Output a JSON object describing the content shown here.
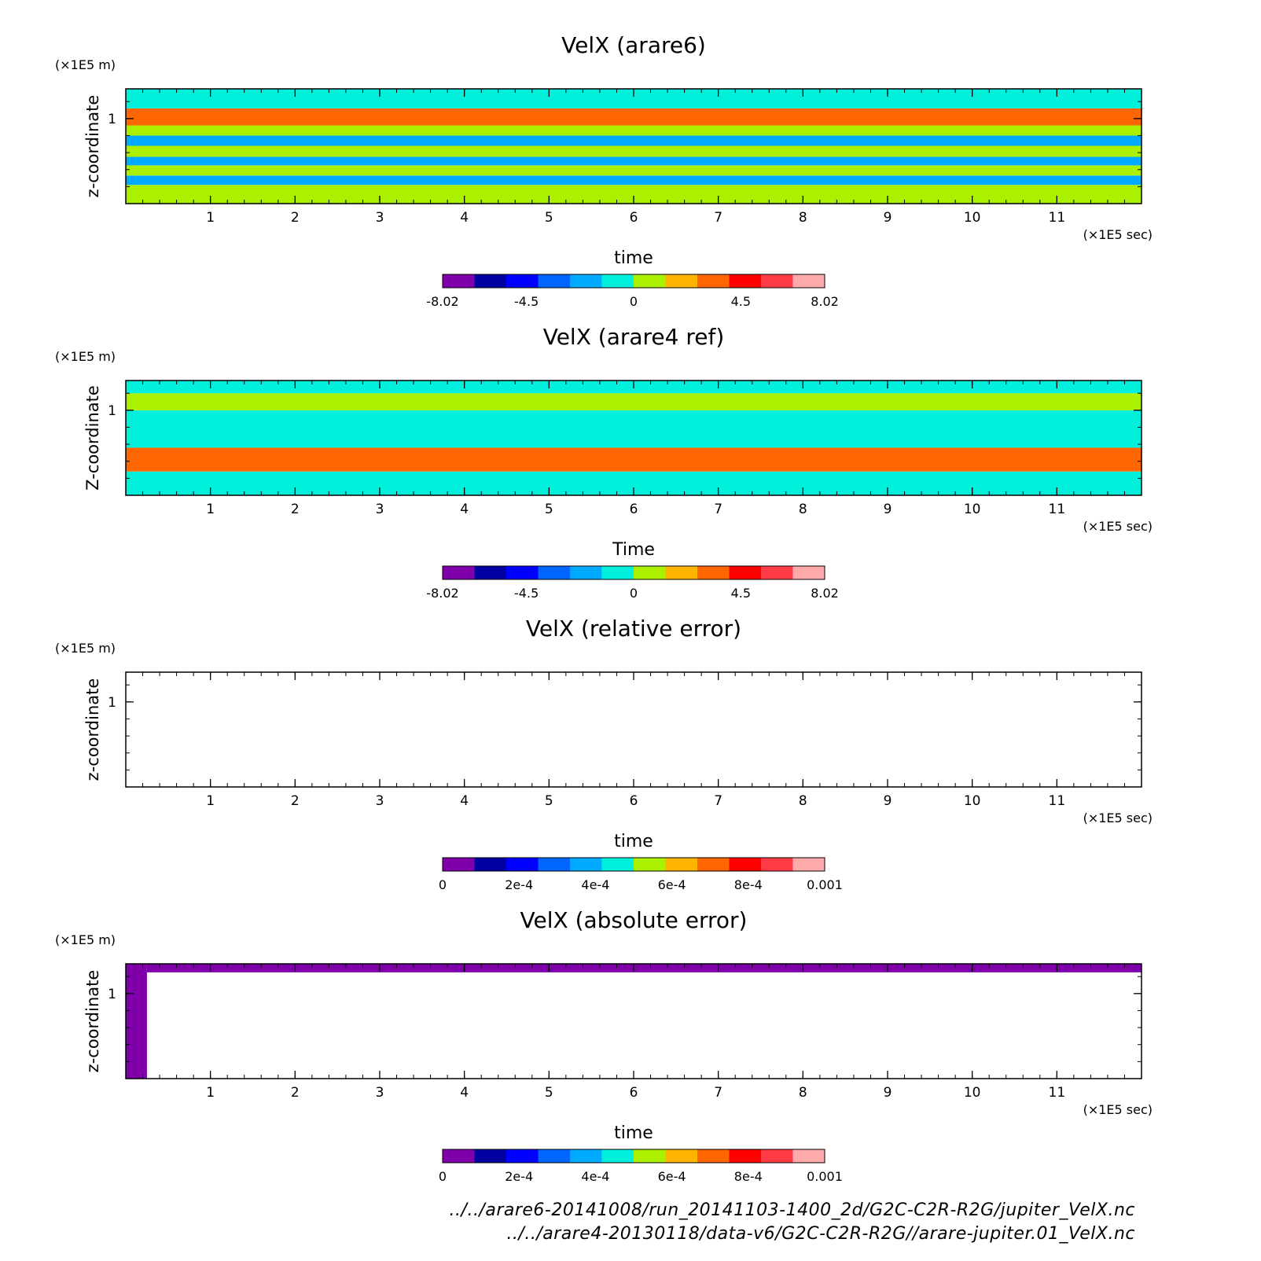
{
  "chart_data": [
    {
      "type": "heatmap",
      "title": "VelX (arare6)",
      "xlabel": "time",
      "ylabel": "z-coordinate",
      "x_unit": "(×1E5 sec)",
      "y_unit": "(×1E5 m)",
      "xlim": [
        0,
        12
      ],
      "ylim": [
        0,
        1.35
      ],
      "x_ticks": [
        1,
        2,
        3,
        4,
        5,
        6,
        7,
        8,
        9,
        10,
        11
      ],
      "y_ticks": [
        1
      ],
      "colorbar": {
        "min": -8.02,
        "max": 8.02,
        "tick_values": [
          -8.02,
          -4.5,
          0,
          4.5,
          8.02
        ],
        "tick_labels": [
          "-8.02",
          "-4.5",
          "0",
          "4.5",
          "8.02"
        ]
      },
      "bands": [
        {
          "z0": 0.0,
          "z1": 0.22,
          "value": 0.8
        },
        {
          "z0": 0.22,
          "z1": 0.33,
          "value": -2.5
        },
        {
          "z0": 0.33,
          "z1": 0.45,
          "value": 0.8
        },
        {
          "z0": 0.45,
          "z1": 0.55,
          "value": -1.4
        },
        {
          "z0": 0.55,
          "z1": 0.68,
          "value": 0.8
        },
        {
          "z0": 0.68,
          "z1": 0.8,
          "value": -2.5
        },
        {
          "z0": 0.8,
          "z1": 0.92,
          "value": 0.8
        },
        {
          "z0": 0.92,
          "z1": 1.12,
          "value": 3.6
        },
        {
          "z0": 1.12,
          "z1": 1.35,
          "value": -0.4
        }
      ]
    },
    {
      "type": "heatmap",
      "title": "VelX (arare4 ref)",
      "xlabel": "Time",
      "ylabel": "Z-coordinate",
      "x_unit": "(×1E5 sec)",
      "y_unit": "(×1E5 m)",
      "xlim": [
        0,
        12
      ],
      "ylim": [
        0,
        1.35
      ],
      "x_ticks": [
        1,
        2,
        3,
        4,
        5,
        6,
        7,
        8,
        9,
        10,
        11
      ],
      "y_ticks": [
        1
      ],
      "colorbar": {
        "min": -8.02,
        "max": 8.02,
        "tick_values": [
          -8.02,
          -4.5,
          0,
          4.5,
          8.02
        ],
        "tick_labels": [
          "-8.02",
          "-4.5",
          "0",
          "4.5",
          "8.02"
        ]
      },
      "bands": [
        {
          "z0": 0.0,
          "z1": 0.28,
          "value": -0.4
        },
        {
          "z0": 0.28,
          "z1": 0.56,
          "value": 3.6
        },
        {
          "z0": 0.56,
          "z1": 1.0,
          "value": -0.4
        },
        {
          "z0": 1.0,
          "z1": 1.2,
          "value": 0.8
        },
        {
          "z0": 1.2,
          "z1": 1.35,
          "value": -0.4
        }
      ]
    },
    {
      "type": "heatmap",
      "title": "VelX (relative error)",
      "xlabel": "time",
      "ylabel": "z-coordinate",
      "x_unit": "(×1E5 sec)",
      "y_unit": "(×1E5 m)",
      "xlim": [
        0,
        12
      ],
      "ylim": [
        0,
        1.35
      ],
      "x_ticks": [
        1,
        2,
        3,
        4,
        5,
        6,
        7,
        8,
        9,
        10,
        11
      ],
      "y_ticks": [
        1
      ],
      "colorbar": {
        "min": 0,
        "max": 0.001,
        "tick_values": [
          0,
          0.0002,
          0.0004,
          0.0006,
          0.0008,
          0.001
        ],
        "tick_labels": [
          "0",
          "2e-4",
          "4e-4",
          "6e-4",
          "8e-4",
          "0.001"
        ]
      },
      "bands": []
    },
    {
      "type": "heatmap",
      "title": "VelX (absolute error)",
      "xlabel": "time",
      "ylabel": "z-coordinate",
      "x_unit": "(×1E5 sec)",
      "y_unit": "(×1E5 m)",
      "xlim": [
        0,
        12
      ],
      "ylim": [
        0,
        1.35
      ],
      "x_ticks": [
        1,
        2,
        3,
        4,
        5,
        6,
        7,
        8,
        9,
        10,
        11
      ],
      "y_ticks": [
        1
      ],
      "colorbar": {
        "min": 0,
        "max": 0.001,
        "tick_values": [
          0,
          0.0002,
          0.0004,
          0.0006,
          0.0008,
          0.001
        ],
        "tick_labels": [
          "0",
          "2e-4",
          "4e-4",
          "6e-4",
          "8e-4",
          "0.001"
        ]
      },
      "filled_regions": [
        {
          "x0": 0.0,
          "x1": 0.25,
          "z0": 0.0,
          "z1": 1.35,
          "value": 1e-05
        },
        {
          "x0": 0.25,
          "x1": 12,
          "z0": 1.25,
          "z1": 1.35,
          "value": 1e-05
        }
      ]
    }
  ],
  "colormap": [
    "#7f00aa",
    "#0000a0",
    "#0000ff",
    "#0066ff",
    "#00aaff",
    "#00f0dc",
    "#aaf000",
    "#ffb400",
    "#ff6600",
    "#ff0000",
    "#ff3c46",
    "#ffaaaa"
  ],
  "footnotes": [
    "../../arare6-20141008/run_20141103-1400_2d/G2C-C2R-R2G/jupiter_VelX.nc",
    "../../arare4-20130118/data-v6/G2C-C2R-R2G//arare-jupiter.01_VelX.nc"
  ]
}
